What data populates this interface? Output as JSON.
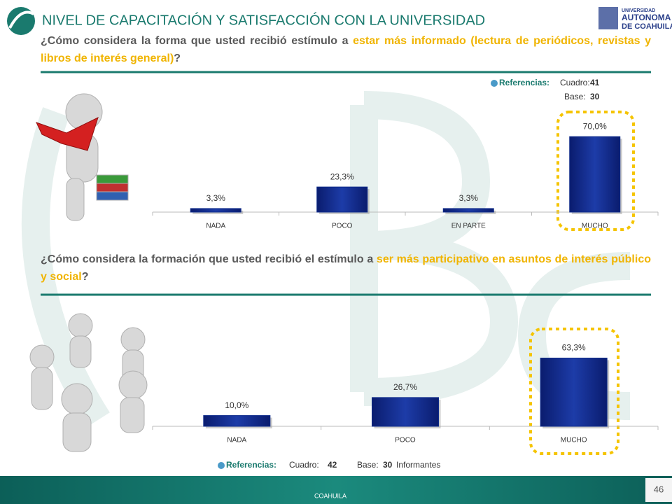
{
  "header": {
    "title": "NIVEL DE CAPACITACIÓN Y SATISFACCIÓN CON LA UNIVERSIDAD",
    "logo": [
      "UNIVERSIDAD",
      "AUTONOMA",
      "DE COAHUILA"
    ]
  },
  "questions": [
    [
      {
        "text": "¿Cómo considera la forma que usted recibió estímulo a ",
        "color": "#595959"
      },
      {
        "text": "estar más informado (lectura de periódicos, revistas y libros de interés general)",
        "color": "#f0b400"
      },
      {
        "text": "?",
        "color": "#595959"
      }
    ],
    [
      {
        "text": "¿Cómo considera la formación que usted recibió el estímulo a ",
        "color": "#595959"
      },
      {
        "text": "ser más participativo en asuntos de interés público y social",
        "color": "#f0b400"
      },
      {
        "text": "?",
        "color": "#595959"
      }
    ]
  ],
  "references": [
    {
      "label": "Referencias:",
      "cuadro_label": "Cuadro:",
      "cuadro": "41",
      "base_label": "Base:",
      "base": "30"
    },
    {
      "label": "Referencias:",
      "cuadro_label": "Cuadro:",
      "cuadro": "42",
      "base_label": "Base:",
      "base": "30",
      "unit": "Informantes"
    }
  ],
  "chart_data": [
    {
      "type": "bar",
      "categories": [
        "NADA",
        "POCO",
        "EN PARTE",
        "MUCHO"
      ],
      "values": [
        3.3,
        23.3,
        3.3,
        70.0
      ],
      "value_labels": [
        "3,3%",
        "23,3%",
        "3,3%",
        "70,0%"
      ],
      "color": "#0d2a8a"
    },
    {
      "type": "bar",
      "categories": [
        "NADA",
        "POCO",
        "MUCHO"
      ],
      "values": [
        10.0,
        26.7,
        63.3
      ],
      "value_labels": [
        "10,0%",
        "26,7%",
        "63,3%"
      ],
      "color": "#0d2a8a"
    }
  ],
  "footer": {
    "text": "COAHUILA",
    "page": "46"
  }
}
